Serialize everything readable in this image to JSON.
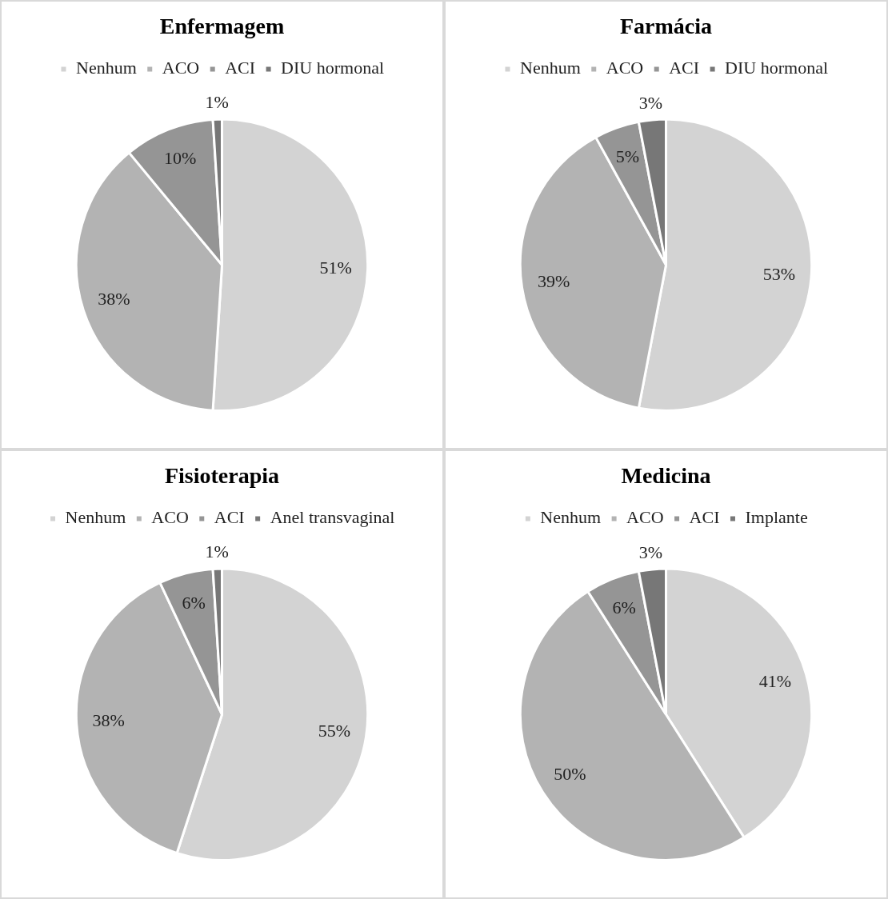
{
  "chart_data": [
    {
      "type": "pie",
      "title": "Enfermagem",
      "categories": [
        "Nenhum",
        "ACO",
        "ACI",
        "DIU hormonal"
      ],
      "values": [
        51,
        38,
        10,
        1
      ],
      "value_labels": [
        "51%",
        "38%",
        "10%",
        "1%"
      ],
      "colors": [
        "#d3d3d3",
        "#b3b3b3",
        "#959595",
        "#777777"
      ],
      "legend": "top"
    },
    {
      "type": "pie",
      "title": "Farmácia",
      "categories": [
        "Nenhum",
        "ACO",
        "ACI",
        "DIU hormonal"
      ],
      "values": [
        53,
        39,
        5,
        3
      ],
      "value_labels": [
        "53%",
        "39%",
        "5%",
        "3%"
      ],
      "colors": [
        "#d3d3d3",
        "#b3b3b3",
        "#959595",
        "#777777"
      ],
      "legend": "top"
    },
    {
      "type": "pie",
      "title": "Fisioterapia",
      "categories": [
        "Nenhum",
        "ACO",
        "ACI",
        "Anel transvaginal"
      ],
      "values": [
        55,
        38,
        6,
        1
      ],
      "value_labels": [
        "55%",
        "38%",
        "6%",
        "1%"
      ],
      "colors": [
        "#d3d3d3",
        "#b3b3b3",
        "#959595",
        "#777777"
      ],
      "legend": "top"
    },
    {
      "type": "pie",
      "title": "Medicina",
      "categories": [
        "Nenhum",
        "ACO",
        "ACI",
        "Implante"
      ],
      "values": [
        41,
        50,
        6,
        3
      ],
      "value_labels": [
        "41%",
        "50%",
        "6%",
        "3%"
      ],
      "colors": [
        "#d3d3d3",
        "#b3b3b3",
        "#959595",
        "#777777"
      ],
      "legend": "top"
    }
  ]
}
